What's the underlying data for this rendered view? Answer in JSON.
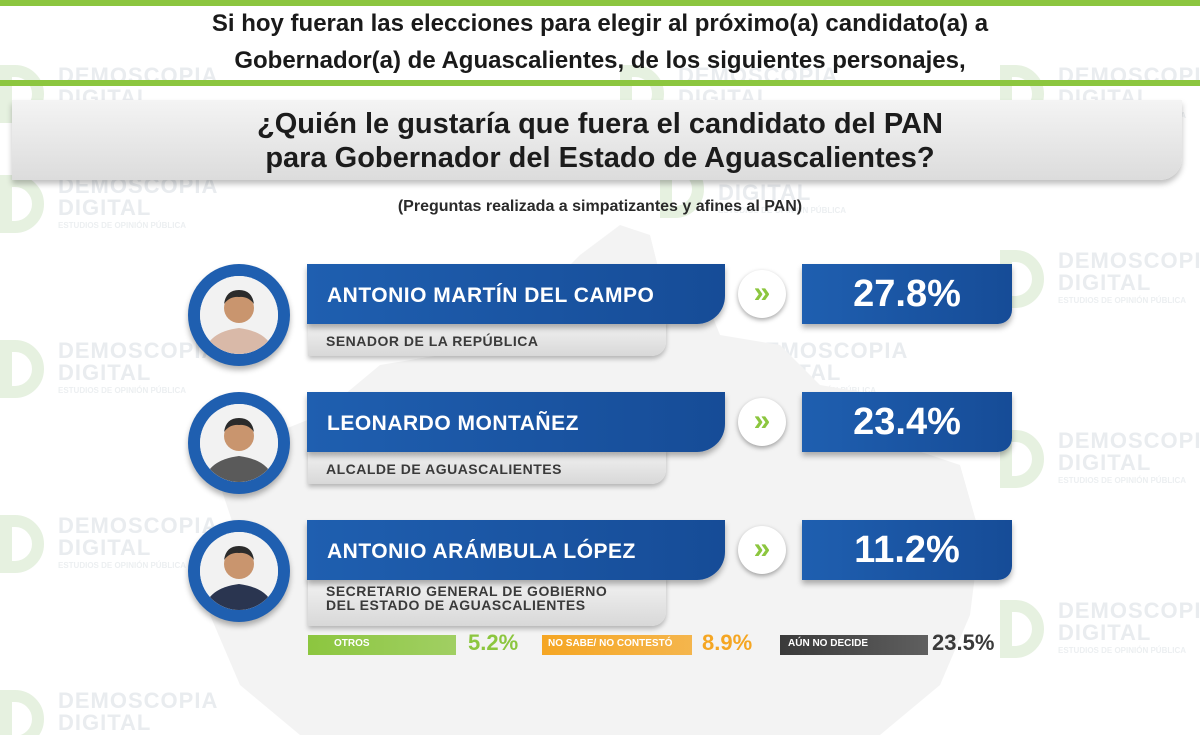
{
  "header": {
    "line1": "Si hoy fueran las elecciones para elegir al próximo(a) candidato(a) a",
    "line2": "Gobernador(a) de Aguascalientes, de los siguientes personajes,"
  },
  "question": {
    "line1": "¿Quién le gustaría que fuera el candidato del PAN",
    "line2": "para Gobernador del Estado de Aguascalientes?"
  },
  "subtitle": "(Preguntas realizada a simpatizantes y afines al PAN)",
  "watermark": {
    "line1": "DEMOSCOPIA",
    "line2": "DIGITAL",
    "tagline": "ESTUDIOS DE OPINIÓN PÚBLICA"
  },
  "colors": {
    "blue": "#1f5fb0",
    "green": "#8cc63f",
    "orange": "#f5a623",
    "gray": "#3a3a3a"
  },
  "chart_data": {
    "type": "bar",
    "title": "¿Quién le gustaría que fuera el candidato del PAN para Gobernador del Estado de Aguascalientes?",
    "categories": [
      "ANTONIO MARTÍN DEL CAMPO",
      "LEONARDO MONTAÑEZ",
      "ANTONIO ARÁMBULA LÓPEZ"
    ],
    "values": [
      27.8,
      23.4,
      11.2
    ],
    "value_labels": [
      "27.8%",
      "23.4%",
      "11.2%"
    ],
    "roles": [
      [
        "SENADOR DE LA REPÚBLICA"
      ],
      [
        "ALCALDE DE AGUASCALIENTES"
      ],
      [
        "SECRETARIO GENERAL DE GOBIERNO",
        "DEL ESTADO DE AGUASCALIENTES"
      ]
    ],
    "other": [
      {
        "label": "OTROS",
        "value": 5.2,
        "value_label": "5.2%",
        "color": "#8cc63f"
      },
      {
        "label": "NO SABE/ NO CONTESTÓ",
        "value": 8.9,
        "value_label": "8.9%",
        "color": "#f5a623"
      },
      {
        "label": "AÚN NO DECIDE",
        "value": 23.5,
        "value_label": "23.5%",
        "color": "#3a3a3a"
      }
    ]
  }
}
